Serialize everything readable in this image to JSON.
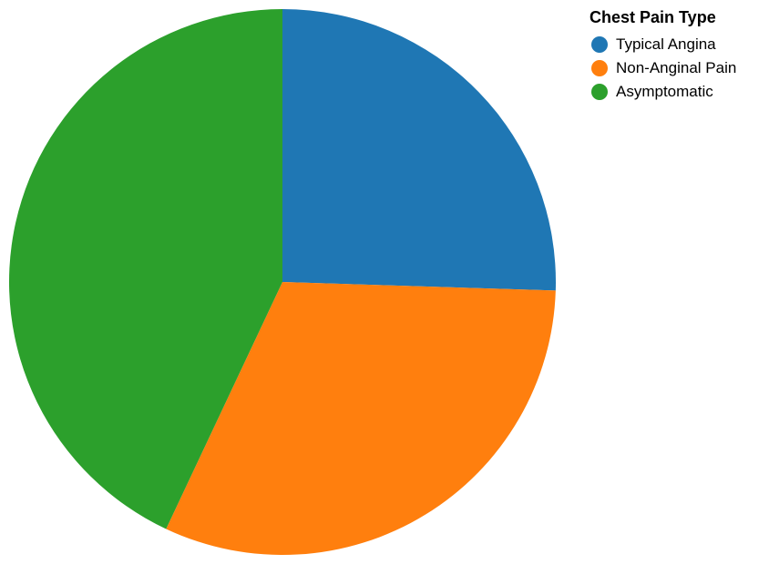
{
  "chart_data": {
    "type": "pie",
    "legend_title": "Chest Pain Type",
    "legend_position": "top-right",
    "start_angle_degrees": 0,
    "direction": "clockwise",
    "slices": [
      {
        "label": "Typical Angina",
        "value": 25.5,
        "color": "#1f77b4"
      },
      {
        "label": "Non-Anginal Pain",
        "value": 31.5,
        "color": "#ff7f0e"
      },
      {
        "label": "Asymptomatic",
        "value": 43.0,
        "color": "#2ca02c"
      }
    ]
  }
}
